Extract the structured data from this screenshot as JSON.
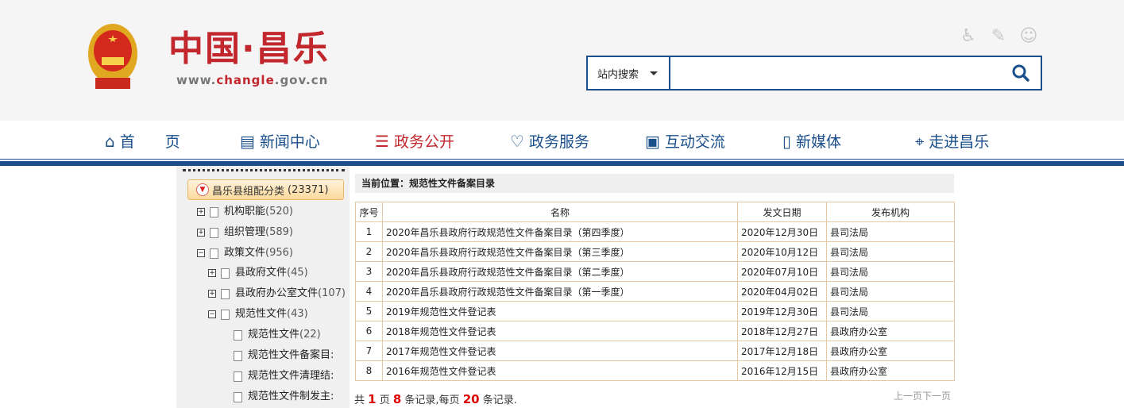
{
  "header": {
    "logo_cn": "中国·昌乐",
    "logo_url_pre": "www.",
    "logo_url_mid": "changle",
    "logo_url_post": ".gov.cn",
    "tools": [
      "accessibility-icon",
      "feedback-icon",
      "robot-icon"
    ],
    "search": {
      "scope": "站内搜索",
      "value": "",
      "placeholder": ""
    }
  },
  "nav": [
    {
      "label": "首　　页",
      "icon": "home-icon"
    },
    {
      "label": "新闻中心",
      "icon": "newspaper-icon"
    },
    {
      "label": "政务公开",
      "icon": "open-icon",
      "active": true
    },
    {
      "label": "政务服务",
      "icon": "heart-icon"
    },
    {
      "label": "互动交流",
      "icon": "chat-icon"
    },
    {
      "label": "新媒体",
      "icon": "phone-icon"
    },
    {
      "label": "走进昌乐",
      "icon": "map-pin-icon"
    }
  ],
  "sidebar": {
    "root": {
      "label": "昌乐县组配分类",
      "count": "(23371)"
    },
    "nodes": [
      {
        "label": "机构职能",
        "count": "(520)"
      },
      {
        "label": "组织管理",
        "count": "(589)"
      },
      {
        "label": "政策文件",
        "count": "(956)"
      },
      {
        "label": "县政府文件",
        "count": "(45)"
      },
      {
        "label": "县政府办公室文件",
        "count": "(107)"
      },
      {
        "label": "规范性文件",
        "count": "(43)"
      },
      {
        "label": "规范性文件",
        "count": "(22)"
      },
      {
        "label": "规范性文件备案目:",
        "count": ""
      },
      {
        "label": "规范性文件清理结:",
        "count": ""
      },
      {
        "label": "规范性文件制发主:",
        "count": ""
      }
    ]
  },
  "breadcrumb": "当前位置：规范性文件备案目录",
  "table": {
    "headers": [
      "序号",
      "名称",
      "发文日期",
      "发布机构"
    ],
    "rows": [
      [
        "1",
        "2020年昌乐县政府行政规范性文件备案目录（第四季度）",
        "2020年12月30日",
        "县司法局"
      ],
      [
        "2",
        "2020年昌乐县政府行政规范性文件备案目录（第三季度）",
        "2020年10月12日",
        "县司法局"
      ],
      [
        "3",
        "2020年昌乐县政府行政规范性文件备案目录（第二季度）",
        "2020年07月10日",
        "县司法局"
      ],
      [
        "4",
        "2020年昌乐县政府行政规范性文件备案目录（第一季度）",
        "2020年04月02日",
        "县司法局"
      ],
      [
        "5",
        "2019年规范性文件登记表",
        "2019年12月30日",
        "县司法局"
      ],
      [
        "6",
        "2018年规范性文件登记表",
        "2018年12月27日",
        "县政府办公室"
      ],
      [
        "7",
        "2017年规范性文件登记表",
        "2017年12月18日",
        "县政府办公室"
      ],
      [
        "8",
        "2016年规范性文件登记表",
        "2016年12月15日",
        "县政府办公室"
      ]
    ]
  },
  "pagination": {
    "t1": "共 ",
    "pages": "1",
    "t2": " 页 ",
    "records": "8",
    "t3": " 条记录,每页 ",
    "per_page": "20",
    "t4": " 条记录.",
    "prev": "上一页",
    "next": "下一页"
  }
}
